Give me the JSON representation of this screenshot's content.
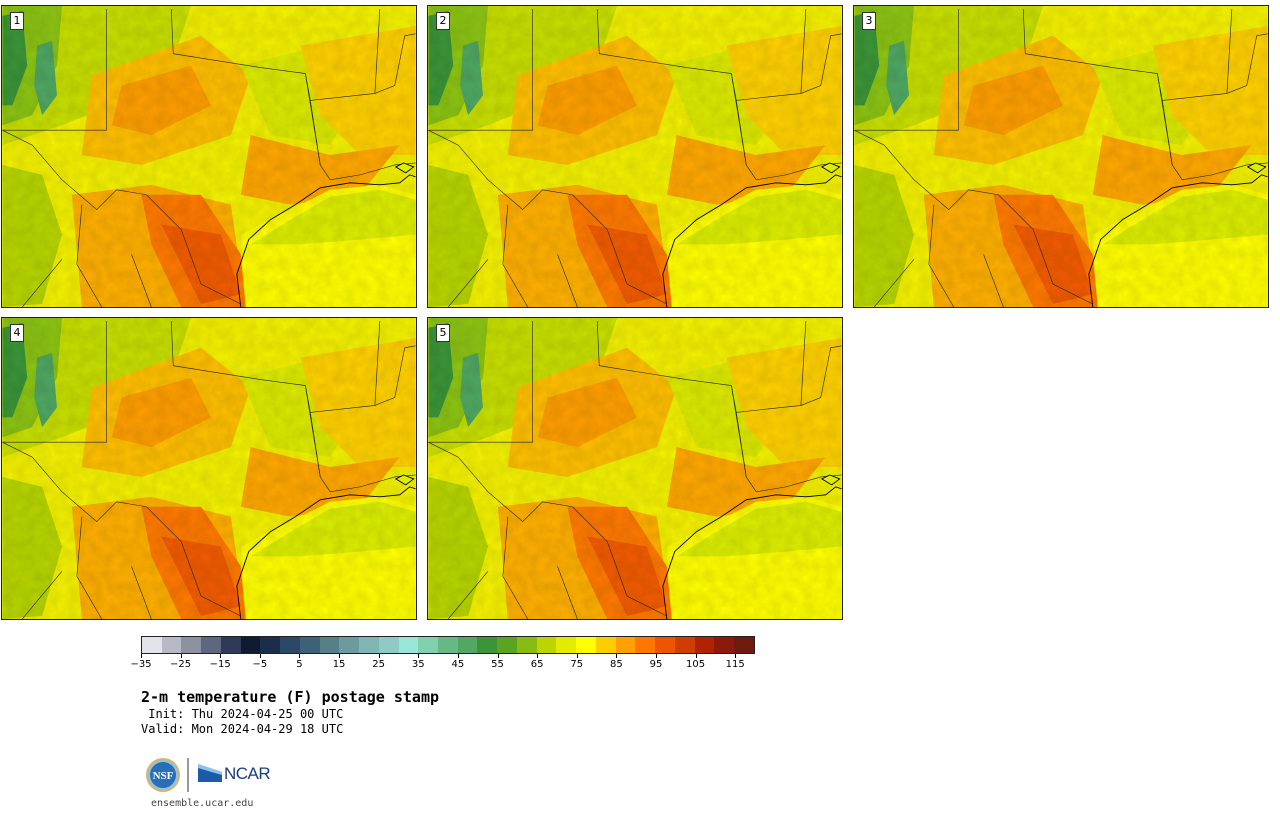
{
  "panels": [
    {
      "label": "1"
    },
    {
      "label": "2"
    },
    {
      "label": "3"
    },
    {
      "label": "4"
    },
    {
      "label": "5"
    }
  ],
  "colorbar": {
    "colors": [
      "#e2e4e9",
      "#b7b9c4",
      "#8c909f",
      "#5e6680",
      "#2f3a5a",
      "#0e1b33",
      "#1b2d4c",
      "#2b4866",
      "#3d6277",
      "#567f88",
      "#6c9a9d",
      "#7fb5b3",
      "#8fcbc4",
      "#9ae6d6",
      "#7fd0ad",
      "#66b987",
      "#50a863",
      "#3b9538",
      "#5aa51f",
      "#88bb14",
      "#bcd500",
      "#e3ec00",
      "#ffff00",
      "#ffcc00",
      "#ff9f00",
      "#ff7700",
      "#ee5500",
      "#d13d00",
      "#b12200",
      "#8c1a0c",
      "#6e1a0e"
    ],
    "tick_labels": [
      "−35",
      "−25",
      "−15",
      "−5",
      "5",
      "15",
      "25",
      "35",
      "45",
      "55",
      "65",
      "75",
      "85",
      "95",
      "105",
      "115"
    ]
  },
  "title": "2-m temperature (F) postage stamp",
  "init_line": " Init: Thu 2024-04-25 00 UTC",
  "valid_line": "Valid: Mon 2024-04-29 18 UTC",
  "logo": {
    "nsf": "NSF",
    "ncar": "NCAR"
  },
  "footer_url": "ensemble.ucar.edu",
  "legend_colors": {
    "gulf": "#dcef00",
    "hot": "#ff7700",
    "warm": "#ffc000",
    "cool": "#a8d400",
    "mountain": "#3b9538"
  }
}
